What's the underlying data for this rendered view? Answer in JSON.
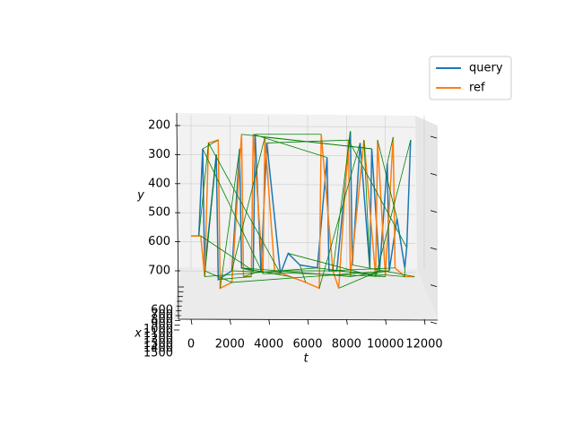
{
  "chart_data": {
    "type": "line3d",
    "xlabel": "t",
    "ylabel": "y",
    "zlabel": "x",
    "xlim": [
      0,
      12000
    ],
    "xticks": [
      0,
      2000,
      4000,
      6000,
      8000,
      10000,
      12000
    ],
    "ylim": [
      200,
      700
    ],
    "yticks": [
      200,
      300,
      400,
      500,
      600,
      700
    ],
    "zlim": [
      600,
      1500
    ],
    "zticks": [
      600,
      700,
      800,
      900,
      1000,
      1100,
      1200,
      1300,
      1400,
      1500
    ],
    "legend": "upper right",
    "series": [
      {
        "name": "query",
        "color": "#1f77b4",
        "t": [
          0,
          400,
          600,
          700,
          1300,
          1400,
          2100,
          2500,
          2600,
          3200,
          3300,
          3600,
          3900,
          4600,
          5000,
          5600,
          6500,
          7000,
          7100,
          7500,
          8200,
          8300,
          8700,
          9200,
          9300,
          9700,
          10100,
          10200,
          10600,
          11000,
          11100,
          11300
        ],
        "values": [
          580,
          580,
          280,
          700,
          300,
          730,
          700,
          280,
          690,
          700,
          230,
          700,
          260,
          710,
          640,
          680,
          690,
          310,
          700,
          700,
          220,
          680,
          260,
          690,
          280,
          700,
          330,
          700,
          520,
          690,
          620,
          250
        ]
      },
      {
        "name": "ref",
        "color": "#ff7f0e",
        "t": [
          0,
          500,
          700,
          900,
          1400,
          1500,
          2100,
          2600,
          2700,
          3100,
          3200,
          3700,
          3800,
          4300,
          5100,
          5900,
          6600,
          6700,
          7300,
          7600,
          8100,
          8200,
          8900,
          9500,
          9600,
          10000,
          10400,
          10500,
          11000,
          11500
        ],
        "values": [
          580,
          580,
          720,
          260,
          250,
          760,
          740,
          230,
          720,
          720,
          230,
          710,
          240,
          700,
          720,
          740,
          760,
          230,
          700,
          760,
          250,
          720,
          250,
          720,
          250,
          720,
          240,
          690,
          720,
          720
        ]
      }
    ],
    "alignment": {
      "color": "green",
      "pairs": [
        [
          0,
          0
        ],
        [
          1,
          3
        ],
        [
          2,
          4
        ],
        [
          3,
          6
        ],
        [
          4,
          2
        ],
        [
          5,
          9
        ],
        [
          6,
          12
        ],
        [
          7,
          5
        ],
        [
          8,
          14
        ],
        [
          9,
          1
        ],
        [
          10,
          17
        ],
        [
          11,
          8
        ],
        [
          12,
          20
        ],
        [
          13,
          11
        ],
        [
          14,
          23
        ],
        [
          15,
          15
        ],
        [
          16,
          25
        ],
        [
          17,
          10
        ],
        [
          18,
          27
        ],
        [
          19,
          13
        ],
        [
          20,
          18
        ],
        [
          21,
          29
        ],
        [
          22,
          16
        ],
        [
          23,
          22
        ],
        [
          24,
          7
        ],
        [
          25,
          19
        ],
        [
          26,
          26
        ],
        [
          27,
          21
        ],
        [
          28,
          24
        ],
        [
          29,
          28
        ],
        [
          30,
          20
        ],
        [
          31,
          23
        ],
        [
          2,
          11
        ],
        [
          6,
          25
        ],
        [
          13,
          3
        ],
        [
          19,
          28
        ],
        [
          24,
          12
        ],
        [
          8,
          21
        ],
        [
          16,
          2
        ],
        [
          27,
          6
        ]
      ]
    }
  }
}
